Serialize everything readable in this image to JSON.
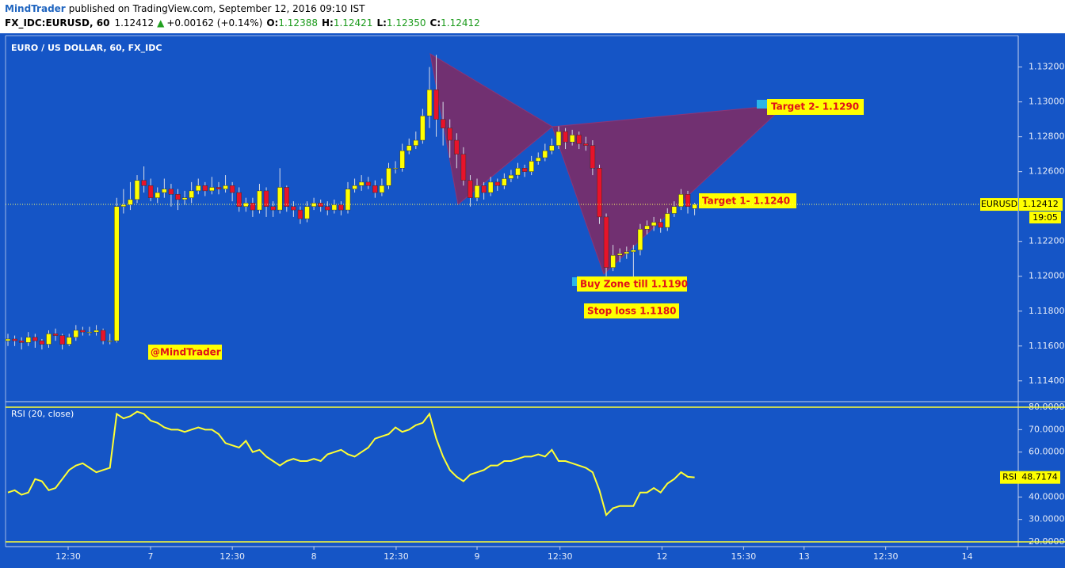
{
  "header": {
    "author": "MindTrader",
    "published": "published on TradingView.com, September 12, 2016 09:10 IST",
    "symbol": "FX_IDC:EURUSD, 60",
    "last": "1.12412",
    "change": "+0.00162 (+0.14%)",
    "o_label": "O:",
    "o": "1.12388",
    "h_label": "H:",
    "h": "1.12421",
    "l_label": "L:",
    "l": "1.12350",
    "c_label": "C:",
    "c": "1.12412"
  },
  "chart_data": {
    "type": "candlestick",
    "title": "EURO / US DOLLAR, 60, FX_IDC",
    "up_color": "#ffff00",
    "down_color": "#e8132a",
    "wick_color": "#d8dde8",
    "x": [
      0,
      1,
      2,
      3,
      4,
      5,
      6,
      7,
      8,
      9,
      10,
      11,
      12,
      13,
      14,
      15,
      16,
      17,
      18,
      19,
      20,
      21,
      22,
      23,
      24,
      25,
      26,
      27,
      28,
      29,
      30,
      31,
      32,
      33,
      34,
      35,
      36,
      37,
      38,
      39,
      40,
      41,
      42,
      43,
      44,
      45,
      46,
      47,
      48,
      49,
      50,
      51,
      52,
      53,
      54,
      55,
      56,
      57,
      58,
      59,
      60,
      61,
      62,
      63,
      64,
      65,
      66,
      67,
      68,
      69,
      70,
      71,
      72,
      73,
      74,
      75,
      76,
      77,
      78,
      79,
      80,
      81,
      82,
      83,
      84,
      85,
      86,
      87,
      88,
      89,
      90,
      91,
      92,
      93,
      94,
      95,
      96,
      97,
      98,
      99,
      100,
      101
    ],
    "ohlc": [
      [
        1.1163,
        1.1167,
        1.116,
        1.1164
      ],
      [
        1.1164,
        1.1166,
        1.116,
        1.1163
      ],
      [
        1.1163,
        1.1165,
        1.1158,
        1.1162
      ],
      [
        1.1162,
        1.1168,
        1.116,
        1.1165
      ],
      [
        1.1165,
        1.1167,
        1.1159,
        1.1163
      ],
      [
        1.1163,
        1.1164,
        1.1158,
        1.1161
      ],
      [
        1.1161,
        1.1169,
        1.1159,
        1.1167
      ],
      [
        1.1167,
        1.117,
        1.1163,
        1.1166
      ],
      [
        1.1166,
        1.1167,
        1.1158,
        1.1161
      ],
      [
        1.1161,
        1.1167,
        1.116,
        1.1165
      ],
      [
        1.1165,
        1.1172,
        1.1163,
        1.1169
      ],
      [
        1.1169,
        1.1171,
        1.1166,
        1.1168
      ],
      [
        1.1168,
        1.1171,
        1.1166,
        1.1168
      ],
      [
        1.1168,
        1.1172,
        1.1166,
        1.1169
      ],
      [
        1.1169,
        1.117,
        1.1161,
        1.1163
      ],
      [
        1.1163,
        1.1167,
        1.1161,
        1.1163
      ],
      [
        1.1163,
        1.1245,
        1.1162,
        1.124
      ],
      [
        1.124,
        1.125,
        1.1236,
        1.1241
      ],
      [
        1.1241,
        1.1254,
        1.1238,
        1.1244
      ],
      [
        1.1244,
        1.1258,
        1.1242,
        1.1255
      ],
      [
        1.1255,
        1.1263,
        1.1248,
        1.1252
      ],
      [
        1.1252,
        1.1256,
        1.1243,
        1.1245
      ],
      [
        1.1245,
        1.1251,
        1.1242,
        1.1248
      ],
      [
        1.1248,
        1.1256,
        1.1245,
        1.125
      ],
      [
        1.125,
        1.1253,
        1.124,
        1.1247
      ],
      [
        1.1247,
        1.125,
        1.1238,
        1.1244
      ],
      [
        1.1244,
        1.1249,
        1.1241,
        1.1245
      ],
      [
        1.1245,
        1.1254,
        1.1242,
        1.1249
      ],
      [
        1.1249,
        1.1256,
        1.1247,
        1.1252
      ],
      [
        1.1252,
        1.1254,
        1.1246,
        1.1249
      ],
      [
        1.1249,
        1.1257,
        1.1247,
        1.1251
      ],
      [
        1.1251,
        1.1254,
        1.1247,
        1.125
      ],
      [
        1.125,
        1.1258,
        1.1248,
        1.1252
      ],
      [
        1.1252,
        1.1254,
        1.1243,
        1.1248
      ],
      [
        1.1248,
        1.1251,
        1.1237,
        1.124
      ],
      [
        1.124,
        1.1245,
        1.1237,
        1.1242
      ],
      [
        1.1242,
        1.1245,
        1.1234,
        1.1238
      ],
      [
        1.1238,
        1.1253,
        1.1236,
        1.1249
      ],
      [
        1.1249,
        1.1251,
        1.1234,
        1.124
      ],
      [
        1.124,
        1.1243,
        1.1234,
        1.1238
      ],
      [
        1.1238,
        1.1262,
        1.1236,
        1.1251
      ],
      [
        1.1251,
        1.1252,
        1.1237,
        1.124
      ],
      [
        1.124,
        1.1243,
        1.1234,
        1.1238
      ],
      [
        1.1238,
        1.124,
        1.123,
        1.1233
      ],
      [
        1.1233,
        1.1243,
        1.1231,
        1.124
      ],
      [
        1.124,
        1.1245,
        1.1238,
        1.1242
      ],
      [
        1.1242,
        1.1244,
        1.1237,
        1.124
      ],
      [
        1.124,
        1.1243,
        1.1235,
        1.1238
      ],
      [
        1.1238,
        1.1244,
        1.1236,
        1.1241
      ],
      [
        1.1241,
        1.1243,
        1.1235,
        1.1238
      ],
      [
        1.1238,
        1.1254,
        1.1236,
        1.125
      ],
      [
        1.125,
        1.1256,
        1.1248,
        1.1252
      ],
      [
        1.1252,
        1.1258,
        1.1249,
        1.1254
      ],
      [
        1.1254,
        1.1257,
        1.125,
        1.1252
      ],
      [
        1.1252,
        1.1255,
        1.1245,
        1.1248
      ],
      [
        1.1248,
        1.1256,
        1.1246,
        1.1252
      ],
      [
        1.1252,
        1.1265,
        1.125,
        1.1262
      ],
      [
        1.1262,
        1.1266,
        1.1259,
        1.1262
      ],
      [
        1.1262,
        1.1276,
        1.126,
        1.1272
      ],
      [
        1.1272,
        1.1279,
        1.127,
        1.1275
      ],
      [
        1.1275,
        1.1283,
        1.1273,
        1.1278
      ],
      [
        1.1278,
        1.1296,
        1.1276,
        1.1292
      ],
      [
        1.1292,
        1.132,
        1.1285,
        1.1307
      ],
      [
        1.1307,
        1.1327,
        1.128,
        1.129
      ],
      [
        1.129,
        1.13,
        1.1275,
        1.1285
      ],
      [
        1.1285,
        1.129,
        1.1268,
        1.1278
      ],
      [
        1.1278,
        1.1282,
        1.1262,
        1.127
      ],
      [
        1.127,
        1.1274,
        1.1252,
        1.1255
      ],
      [
        1.1255,
        1.1258,
        1.124,
        1.1245
      ],
      [
        1.1245,
        1.1256,
        1.1243,
        1.1252
      ],
      [
        1.1252,
        1.1254,
        1.1244,
        1.1248
      ],
      [
        1.1248,
        1.1257,
        1.1246,
        1.1254
      ],
      [
        1.1254,
        1.1256,
        1.1249,
        1.1252
      ],
      [
        1.1252,
        1.1259,
        1.125,
        1.1256
      ],
      [
        1.1256,
        1.1261,
        1.1254,
        1.1258
      ],
      [
        1.1258,
        1.1265,
        1.1256,
        1.1262
      ],
      [
        1.1262,
        1.1264,
        1.1257,
        1.126
      ],
      [
        1.126,
        1.1269,
        1.1258,
        1.1266
      ],
      [
        1.1266,
        1.1271,
        1.1264,
        1.1268
      ],
      [
        1.1268,
        1.1276,
        1.1266,
        1.1272
      ],
      [
        1.1272,
        1.1279,
        1.127,
        1.1275
      ],
      [
        1.1275,
        1.1286,
        1.1273,
        1.1283
      ],
      [
        1.1283,
        1.1285,
        1.1273,
        1.1277
      ],
      [
        1.1277,
        1.1284,
        1.1275,
        1.1281
      ],
      [
        1.1281,
        1.1283,
        1.1273,
        1.1276
      ],
      [
        1.1276,
        1.128,
        1.1272,
        1.1275
      ],
      [
        1.1275,
        1.1278,
        1.1258,
        1.1262
      ],
      [
        1.1262,
        1.1264,
        1.123,
        1.1234
      ],
      [
        1.1234,
        1.1236,
        1.12,
        1.1205
      ],
      [
        1.1205,
        1.1218,
        1.1203,
        1.1212
      ],
      [
        1.1212,
        1.1216,
        1.1208,
        1.1213
      ],
      [
        1.1213,
        1.1217,
        1.121,
        1.1214
      ],
      [
        1.1214,
        1.1218,
        1.1199,
        1.1215
      ],
      [
        1.1215,
        1.123,
        1.1212,
        1.1227
      ],
      [
        1.1227,
        1.1232,
        1.1224,
        1.1229
      ],
      [
        1.1229,
        1.1234,
        1.1226,
        1.1231
      ],
      [
        1.1231,
        1.1233,
        1.1225,
        1.1228
      ],
      [
        1.1228,
        1.1239,
        1.1226,
        1.1236
      ],
      [
        1.1236,
        1.1243,
        1.1234,
        1.124
      ],
      [
        1.124,
        1.125,
        1.1238,
        1.1247
      ],
      [
        1.1247,
        1.1249,
        1.1236,
        1.124
      ],
      [
        1.12388,
        1.12421,
        1.1235,
        1.12412
      ]
    ],
    "xlim": [
      -0.35,
      148.6
    ],
    "xticks": [
      {
        "value": 8.86,
        "label": "12:30"
      },
      {
        "value": 20.98,
        "label": "7"
      },
      {
        "value": 33.0,
        "label": "12:30"
      },
      {
        "value": 45.0,
        "label": "8"
      },
      {
        "value": 57.1,
        "label": "12:30"
      },
      {
        "value": 69.0,
        "label": "9"
      },
      {
        "value": 81.2,
        "label": "12:30"
      },
      {
        "value": 96.2,
        "label": "12"
      },
      {
        "value": 108.2,
        "label": "15:30"
      },
      {
        "value": 117.1,
        "label": "13"
      },
      {
        "value": 129.1,
        "label": "12:30"
      },
      {
        "value": 141.1,
        "label": "14"
      }
    ],
    "ylim": [
      1.1129,
      1.1338
    ],
    "yticks": [
      {
        "value": 1.132,
        "label": "1.13200"
      },
      {
        "value": 1.13,
        "label": "1.13000"
      },
      {
        "value": 1.128,
        "label": "1.12800"
      },
      {
        "value": 1.126,
        "label": "1.12600"
      },
      {
        "value": 1.122,
        "label": "1.12200"
      },
      {
        "value": 1.12,
        "label": "1.12000"
      },
      {
        "value": 1.118,
        "label": "1.11800"
      },
      {
        "value": 1.116,
        "label": "1.11600"
      },
      {
        "value": 1.114,
        "label": "1.11400"
      }
    ],
    "price_tag": {
      "name": "EURUSD",
      "value": 1.12412,
      "label": "1.12412",
      "time": "19:05"
    },
    "annotations": [
      "Target 2- 1.1290",
      "Target 1- 1.1240",
      "Buy Zone till 1.1190",
      "Stop loss 1.1180",
      "@MindTrader"
    ],
    "rsi": {
      "title": "RSI (20, close)",
      "color": "#ffff33",
      "values": [
        42,
        43,
        41,
        42,
        48,
        47,
        43,
        44,
        48,
        52,
        54,
        55,
        53,
        51,
        52,
        53,
        77,
        75,
        76,
        78,
        77,
        74,
        73,
        71,
        70,
        70,
        69,
        70,
        71,
        70,
        70,
        68,
        64,
        63,
        62,
        65,
        60,
        61,
        58,
        56,
        54,
        56,
        57,
        56,
        56,
        57,
        56,
        59,
        60,
        61,
        59,
        58,
        60,
        62,
        66,
        67,
        68,
        71,
        69,
        70,
        72,
        73,
        77,
        66,
        58,
        52,
        49,
        47,
        50,
        51,
        52,
        54,
        54,
        56,
        56,
        57,
        58,
        58,
        59,
        58,
        61,
        56,
        56,
        55,
        54,
        53,
        51,
        43,
        32,
        35,
        36,
        36,
        36,
        42,
        42,
        44,
        42,
        46,
        48,
        51,
        49,
        48.7174
      ],
      "ylim": [
        17.9,
        80.7
      ],
      "yticks": [
        {
          "value": 80,
          "label": "80.0000"
        },
        {
          "value": 70,
          "label": "70.0000"
        },
        {
          "value": 60,
          "label": "60.0000"
        },
        {
          "value": 40,
          "label": "40.0000"
        },
        {
          "value": 30,
          "label": "30.0000"
        },
        {
          "value": 20,
          "label": "20.0000"
        }
      ],
      "levels": [
        80,
        20
      ],
      "tag": {
        "name": "RSI",
        "value": 48.7174,
        "label": "48.7174"
      }
    }
  }
}
